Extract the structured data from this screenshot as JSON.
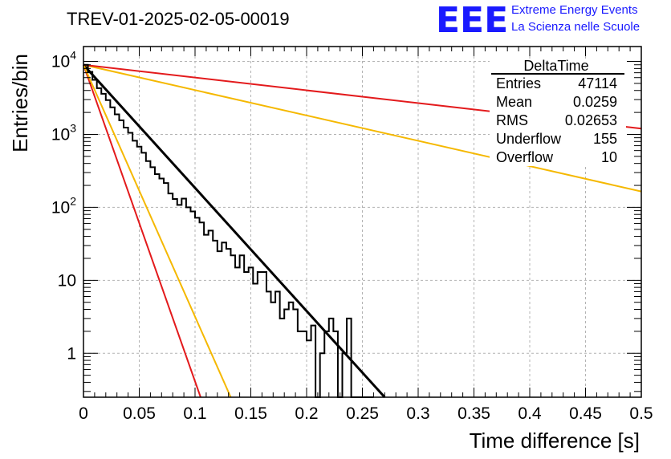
{
  "header": {
    "title": "TREV-01-2025-02-05-00019",
    "logo_text": "EEE",
    "logo_line1": "Extreme Energy Events",
    "logo_line2": "La Scienza nelle Scuole"
  },
  "stats_box": {
    "name": "DeltaTime",
    "rows": [
      {
        "label": "Entries",
        "value": "47114"
      },
      {
        "label": "Mean",
        "value": "0.0259"
      },
      {
        "label": "RMS",
        "value": "0.02653"
      },
      {
        "label": "Underflow",
        "value": "155"
      },
      {
        "label": "Overflow",
        "value": "10"
      }
    ]
  },
  "chart_data": {
    "type": "line",
    "xlabel": "Time difference [s]",
    "ylabel": "Entries/bin",
    "xlim": [
      0,
      0.5
    ],
    "ylim": [
      0.25,
      16000
    ],
    "yscale": "log",
    "grid": true,
    "x_ticks": [
      0,
      0.05,
      0.1,
      0.15,
      0.2,
      0.25,
      0.3,
      0.35,
      0.4,
      0.45,
      0.5
    ],
    "x_tick_labels": [
      "0",
      "0.05",
      "0.1",
      "0.15",
      "0.2",
      "0.25",
      "0.3",
      "0.35",
      "0.4",
      "0.45",
      "0.5"
    ],
    "y_ticks": [
      {
        "value": 1,
        "base": "1",
        "exp": ""
      },
      {
        "value": 10,
        "base": "10",
        "exp": ""
      },
      {
        "value": 100,
        "base": "10",
        "exp": "2"
      },
      {
        "value": 1000,
        "base": "10",
        "exp": "3"
      },
      {
        "value": 10000,
        "base": "10",
        "exp": "4"
      }
    ],
    "histogram": {
      "bin_width": 0.004,
      "x_start": 0,
      "values": [
        9000,
        7200,
        5600,
        4300,
        3600,
        2950,
        2350,
        1880,
        1560,
        1240,
        1050,
        820,
        680,
        560,
        430,
        355,
        285,
        248,
        215,
        155,
        130,
        108,
        132,
        100,
        88,
        72,
        62,
        42,
        48,
        35,
        25,
        33,
        27,
        22,
        15,
        22,
        13,
        15,
        9,
        13,
        13,
        7,
        5,
        7,
        3,
        4,
        5,
        4,
        2,
        2,
        1.5,
        2.4,
        0.25,
        1,
        2,
        3,
        2,
        0.25,
        1,
        3,
        0.25,
        0.25,
        0.25,
        0.25,
        0.25
      ]
    },
    "series": [
      {
        "color": "#000000",
        "points": [
          [
            0,
            9000
          ],
          [
            0.27,
            0.25
          ]
        ]
      },
      {
        "color": "#e31a1c",
        "points": [
          [
            0,
            9000
          ],
          [
            0.105,
            0.25
          ]
        ]
      },
      {
        "color": "#f5b800",
        "points": [
          [
            0,
            9000
          ],
          [
            0.132,
            0.25
          ]
        ]
      },
      {
        "color": "#f5b800",
        "points": [
          [
            0,
            9000
          ],
          [
            0.5,
            165
          ]
        ]
      },
      {
        "color": "#e31a1c",
        "points": [
          [
            0,
            9000
          ],
          [
            0.5,
            1200
          ]
        ]
      }
    ]
  }
}
